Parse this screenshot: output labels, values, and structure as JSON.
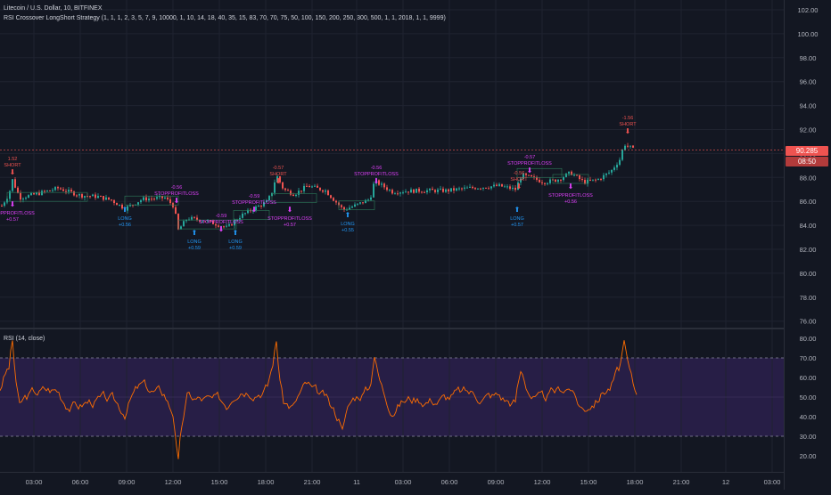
{
  "header": {
    "symbol_title": "Litecoin / U.S. Dollar, 10, BITFINEX",
    "strategy_label": "RSI Crossover LongShort Strategy (1, 1, 1, 2, 3, 5, 7, 9, 10000, 1, 10, 14, 18, 40, 35, 15, 83, 70, 70, 75, 50, 100, 150, 200, 250, 300, 500, 1, 1, 2018, 1, 1, 9999)"
  },
  "rsi_pane": {
    "title": "RSI (14, close)"
  },
  "price_axis": {
    "labels": [
      "102.00",
      "100.00",
      "98.00",
      "96.00",
      "94.00",
      "92.00",
      "90.00",
      "88.00",
      "86.00",
      "84.00",
      "82.00",
      "80.00",
      "78.00",
      "76.00"
    ],
    "current_price": "90.285",
    "countdown": "08:50"
  },
  "rsi_axis": {
    "labels": [
      "80.00",
      "70.00",
      "60.00",
      "50.00",
      "40.00",
      "30.00",
      "20.00"
    ]
  },
  "time_axis": {
    "labels": [
      "03:00",
      "06:00",
      "09:00",
      "12:00",
      "15:00",
      "18:00",
      "21:00",
      "11",
      "03:00",
      "06:00",
      "09:00",
      "12:00",
      "15:00",
      "18:00",
      "21:00",
      "12",
      "03:00"
    ]
  },
  "colors": {
    "up": "#26a69a",
    "down": "#ef5350",
    "exit": "#e040fb",
    "long": "#2196f3",
    "rsi": "#ff6d00",
    "band": "#7e57c2"
  },
  "trade_signals": [
    {
      "type": "short",
      "label": "SHORT",
      "qty": "1.52"
    },
    {
      "type": "exit",
      "label": "STOPPROFITLOSS",
      "qty": "+0.57"
    },
    {
      "type": "long",
      "label": "LONG",
      "qty": "+0.56"
    },
    {
      "type": "exit",
      "label": "STOPPROFITLOSS",
      "qty": "-0.56"
    },
    {
      "type": "long",
      "label": "LONG",
      "qty": "+0.59"
    },
    {
      "type": "exit",
      "label": "STOPPROFITLOSS",
      "qty": "-0.59"
    },
    {
      "type": "long",
      "label": "LONG",
      "qty": "+0.59"
    },
    {
      "type": "exit",
      "label": "STOPPROFITLOSS",
      "qty": "-0.59"
    },
    {
      "type": "short",
      "label": "SHORT",
      "qty": "-0.57"
    },
    {
      "type": "exit",
      "label": "STOPPROFITLOSS",
      "qty": "+0.57"
    },
    {
      "type": "long",
      "label": "LONG",
      "qty": "+0.55"
    },
    {
      "type": "exit",
      "label": "STOPPROFITLOSS",
      "qty": "-0.56"
    },
    {
      "type": "long",
      "label": "LONG",
      "qty": "+0.57"
    },
    {
      "type": "exit",
      "label": "STOPPROFITLOSS",
      "qty": "-0.57"
    },
    {
      "type": "short",
      "label": "SHORT",
      "qty": "-0.56"
    },
    {
      "type": "exit",
      "label": "STOPPROFITLOSS",
      "qty": "+0.56"
    },
    {
      "type": "short",
      "label": "SHORT",
      "qty": "-1.56"
    }
  ]
}
